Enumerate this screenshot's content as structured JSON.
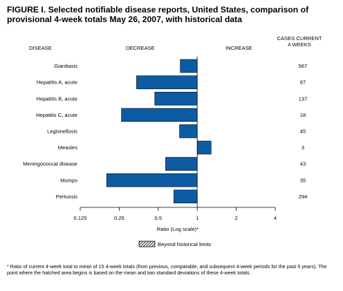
{
  "figure": {
    "title": "FIGURE I. Selected notifiable disease reports, United States, comparison of provisional 4-week totals May 26, 2007, with historical data",
    "footnote": "* Ratio of current 4-week total to mean of 15 4-week totals (from previous, comparable, and subsequent 4-week periods for the past 5 years). The point where the hatched area begins is based on the mean and two standard deviations of these 4-week totals."
  },
  "colors": {
    "bar": "#0d5ba3",
    "bar_stroke": "#000000"
  },
  "chart_data": {
    "type": "bar",
    "orientation": "horizontal",
    "scale": "log2",
    "headers": {
      "disease": "DISEASE",
      "decrease": "DECREASE",
      "increase": "INCREASE",
      "cases_line1": "CASES CURRENT",
      "cases_line2": "4 WEEKS"
    },
    "categories": [
      "Giardiasis",
      "Hepatitis A, acute",
      "Hepatitis B, acute",
      "Hepatitis C, acute",
      "Legionellosis",
      "Measles",
      "Meningococcal disease",
      "Mumps",
      "Pertussis"
    ],
    "values": [
      0.74,
      0.34,
      0.47,
      0.26,
      0.73,
      1.28,
      0.57,
      0.2,
      0.66
    ],
    "cases": [
      "567",
      "87",
      "137",
      "18",
      "45",
      "3",
      "43",
      "35",
      "294"
    ],
    "baseline": 1,
    "xlim": [
      0.125,
      4
    ],
    "xticks": [
      0.125,
      0.25,
      0.5,
      1,
      2,
      4
    ],
    "xtick_labels": [
      "0.125",
      "0.25",
      "0.5",
      "1",
      "2",
      "4"
    ],
    "xlabel": "Ratio (Log scale)*",
    "legend": {
      "label": "Beyond historical limits",
      "position": "bottom-center"
    }
  }
}
